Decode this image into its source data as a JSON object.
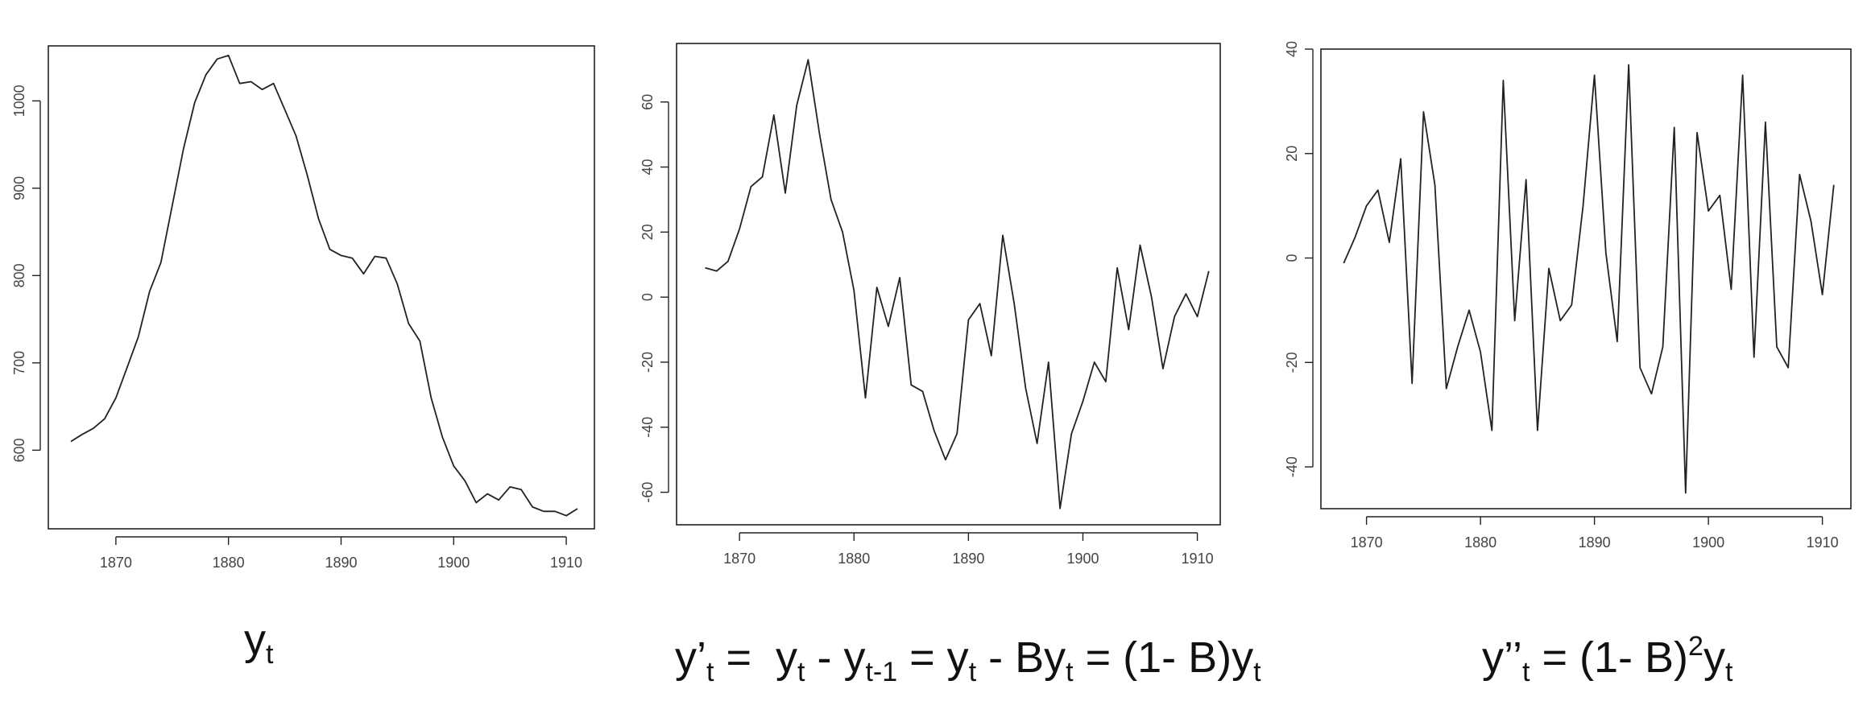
{
  "chart_data": [
    {
      "type": "line",
      "caption": {
        "base": "y",
        "sub": "t"
      },
      "x_start": 1866,
      "xticks": [
        1870,
        1880,
        1890,
        1900,
        1910
      ],
      "yticks": [
        600,
        700,
        800,
        900,
        1000
      ],
      "xlim": [
        1864,
        1912.5
      ],
      "ylim": [
        510,
        1063
      ],
      "values": [
        610,
        618,
        625,
        636,
        660,
        695,
        730,
        782,
        815,
        880,
        945,
        998,
        1030,
        1048,
        1052,
        1020,
        1022,
        1013,
        1020,
        990,
        960,
        915,
        865,
        830,
        823,
        820,
        802,
        822,
        820,
        790,
        745,
        725,
        660,
        615,
        582,
        565,
        540,
        550,
        543,
        558,
        555,
        535,
        530,
        530,
        525,
        533
      ]
    },
    {
      "type": "line",
      "caption": {
        "text": "y’t =  yt - yt-1 = yt - Byt = (1- B)yt"
      },
      "x_start": 1867,
      "xticks": [
        1870,
        1880,
        1890,
        1900,
        1910
      ],
      "yticks": [
        -60,
        -40,
        -20,
        0,
        20,
        40,
        60
      ],
      "xlim": [
        1864.5,
        1912
      ],
      "ylim": [
        -70,
        78
      ],
      "values": [
        9,
        8,
        11,
        21,
        34,
        37,
        56,
        32,
        59,
        73,
        50,
        30,
        20,
        2,
        -31,
        3,
        -9,
        6,
        -27,
        -29,
        -41,
        -50,
        -42,
        -7,
        -2,
        -18,
        19,
        -2,
        -28,
        -45,
        -20,
        -65,
        -42,
        -32,
        -20,
        -26,
        9,
        -10,
        16,
        0,
        -22,
        -6,
        1,
        -6,
        8
      ]
    },
    {
      "type": "line",
      "caption": {
        "text": "y’’t = (1- B)2yt"
      },
      "x_start": 1868,
      "xticks": [
        1870,
        1880,
        1890,
        1900,
        1910
      ],
      "yticks": [
        -40,
        -20,
        0,
        20,
        40
      ],
      "xlim": [
        1866,
        1912.5
      ],
      "ylim": [
        -48,
        40
      ],
      "values": [
        -1,
        4,
        10,
        13,
        3,
        19,
        -24,
        28,
        14,
        -25,
        -17,
        -10,
        -18,
        -33,
        34,
        -12,
        15,
        -33,
        -2,
        -12,
        -9,
        10,
        35,
        1,
        -16,
        37,
        -21,
        -26,
        -17,
        25,
        -45,
        24,
        9,
        12,
        -6,
        35,
        -19,
        26,
        -17,
        -21,
        16,
        7,
        -7,
        14
      ]
    }
  ]
}
